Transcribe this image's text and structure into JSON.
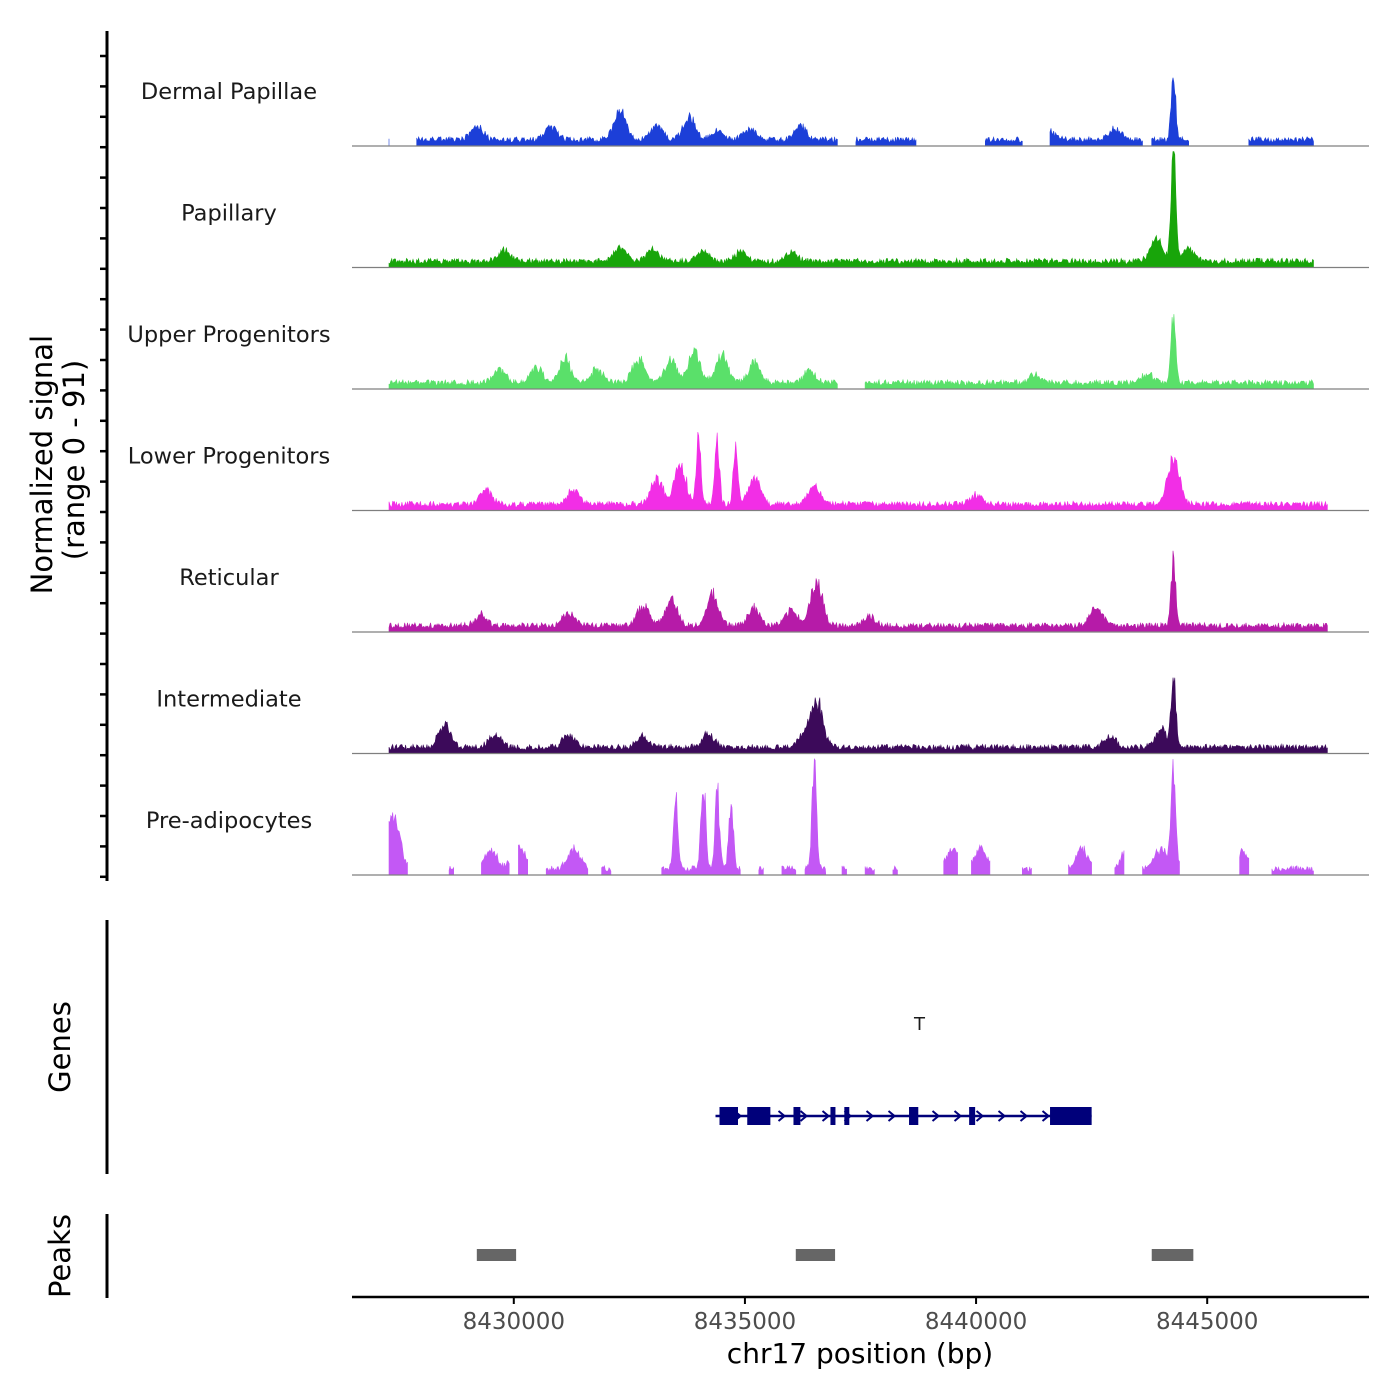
{
  "chart_data": {
    "type": "area",
    "title": "",
    "y_axis_title_line1": "Normalized signal",
    "y_axis_title_line2": "(range 0 - 91)",
    "ylim": [
      0,
      91
    ],
    "xlabel": "chr17 position (bp)",
    "xlim": [
      8426500,
      8448500
    ],
    "x_ticks": [
      8430000,
      8435000,
      8440000,
      8445000
    ],
    "x_tick_labels": [
      "8430000",
      "8435000",
      "8440000",
      "8445000"
    ],
    "tracks": [
      {
        "name": "Dermal Papillae",
        "color": "#1C3FD8",
        "segments": [
          [
            8427300,
            8427300
          ],
          [
            8427900,
            8437000
          ],
          [
            8437400,
            8438700
          ],
          [
            8440200,
            8441000
          ],
          [
            8441600,
            8443600
          ],
          [
            8443800,
            8444600
          ],
          [
            8445900,
            8447300
          ]
        ],
        "peaks": [
          [
            8429200,
            12
          ],
          [
            8430800,
            12
          ],
          [
            8432300,
            26
          ],
          [
            8433100,
            14
          ],
          [
            8433800,
            20
          ],
          [
            8434400,
            8
          ],
          [
            8435100,
            10
          ],
          [
            8436200,
            12
          ],
          [
            8441600,
            8
          ],
          [
            8443000,
            10
          ],
          [
            8444270,
            58
          ]
        ]
      },
      {
        "name": "Papillary",
        "color": "#18A50A",
        "segments": [
          [
            8427300,
            8447300
          ]
        ],
        "peaks": [
          [
            8429800,
            10
          ],
          [
            8432300,
            12
          ],
          [
            8433000,
            10
          ],
          [
            8434100,
            9
          ],
          [
            8434900,
            8
          ],
          [
            8436000,
            8
          ],
          [
            8443900,
            22
          ],
          [
            8444270,
            100
          ],
          [
            8444600,
            10
          ]
        ]
      },
      {
        "name": "Upper Progenitors",
        "color": "#5AE06A",
        "segments": [
          [
            8427300,
            8437000
          ],
          [
            8437600,
            8447300
          ]
        ],
        "peaks": [
          [
            8429700,
            12
          ],
          [
            8430500,
            14
          ],
          [
            8431100,
            22
          ],
          [
            8431800,
            12
          ],
          [
            8432700,
            22
          ],
          [
            8433400,
            20
          ],
          [
            8433900,
            28
          ],
          [
            8434500,
            26
          ],
          [
            8435200,
            18
          ],
          [
            8436400,
            10
          ],
          [
            8441300,
            8
          ],
          [
            8443700,
            8
          ],
          [
            8444270,
            60
          ]
        ]
      },
      {
        "name": "Lower Progenitors",
        "color": "#F22EE6",
        "segments": [
          [
            8427300,
            8447600
          ]
        ],
        "peaks": [
          [
            8429400,
            14
          ],
          [
            8431300,
            14
          ],
          [
            8433100,
            22
          ],
          [
            8433600,
            35
          ],
          [
            8434000,
            58
          ],
          [
            8434400,
            55
          ],
          [
            8434800,
            54
          ],
          [
            8435200,
            24
          ],
          [
            8436500,
            16
          ],
          [
            8440000,
            8
          ],
          [
            8444270,
            40
          ]
        ]
      },
      {
        "name": "Reticular",
        "color": "#B61BA8",
        "segments": [
          [
            8427300,
            8447600
          ]
        ],
        "peaks": [
          [
            8429300,
            10
          ],
          [
            8431200,
            12
          ],
          [
            8432800,
            18
          ],
          [
            8433400,
            24
          ],
          [
            8434300,
            28
          ],
          [
            8435200,
            16
          ],
          [
            8436000,
            14
          ],
          [
            8436550,
            40
          ],
          [
            8437700,
            8
          ],
          [
            8442600,
            16
          ],
          [
            8444270,
            58
          ]
        ]
      },
      {
        "name": "Intermediate",
        "color": "#3C0A5A",
        "segments": [
          [
            8427300,
            8447600
          ]
        ],
        "peaks": [
          [
            8428500,
            20
          ],
          [
            8429600,
            12
          ],
          [
            8431200,
            12
          ],
          [
            8432800,
            10
          ],
          [
            8434200,
            12
          ],
          [
            8436300,
            12
          ],
          [
            8436560,
            40
          ],
          [
            8442900,
            10
          ],
          [
            8444000,
            16
          ],
          [
            8444270,
            66
          ]
        ]
      },
      {
        "name": "Pre-adipocytes",
        "color": "#C358F5",
        "segments": [
          [
            8427300,
            8427700
          ],
          [
            8428600,
            8428700
          ],
          [
            8429300,
            8429900
          ],
          [
            8430100,
            8430300
          ],
          [
            8430700,
            8431600
          ],
          [
            8431900,
            8432100
          ],
          [
            8433200,
            8434900
          ],
          [
            8435300,
            8435400
          ],
          [
            8435800,
            8436100
          ],
          [
            8436300,
            8436750
          ],
          [
            8437100,
            8437200
          ],
          [
            8437600,
            8437800
          ],
          [
            8438200,
            8438300
          ],
          [
            8439300,
            8439600
          ],
          [
            8439900,
            8440300
          ],
          [
            8441000,
            8441200
          ],
          [
            8442000,
            8442500
          ],
          [
            8443000,
            8443200
          ],
          [
            8443600,
            8444400
          ],
          [
            8445700,
            8445900
          ],
          [
            8446400,
            8447300
          ]
        ],
        "peaks": [
          [
            8427400,
            50
          ],
          [
            8428000,
            10
          ],
          [
            8429500,
            18
          ],
          [
            8430100,
            24
          ],
          [
            8431300,
            18
          ],
          [
            8433500,
            65
          ],
          [
            8434100,
            82
          ],
          [
            8434400,
            70
          ],
          [
            8434700,
            60
          ],
          [
            8436500,
            95
          ],
          [
            8439500,
            18
          ],
          [
            8440100,
            18
          ],
          [
            8442300,
            18
          ],
          [
            8443300,
            20
          ],
          [
            8444000,
            18
          ],
          [
            8444270,
            100
          ],
          [
            8445800,
            16
          ]
        ]
      }
    ],
    "genes_track_label": "Genes",
    "gene": {
      "name": "T",
      "strand": "+",
      "start": 8434450,
      "end": 8442500,
      "color": "#00007A",
      "exons": [
        [
          8434450,
          8434850
        ],
        [
          8435050,
          8435550
        ],
        [
          8436050,
          8436200
        ],
        [
          8436850,
          8436950
        ],
        [
          8437150,
          8437250
        ],
        [
          8438550,
          8438750
        ],
        [
          8439850,
          8439980
        ],
        [
          8441600,
          8442500
        ]
      ]
    },
    "peaks_track_label": "Peaks",
    "peak_regions": [
      [
        8429200,
        8430050
      ],
      [
        8436100,
        8436950
      ],
      [
        8443800,
        8444700
      ]
    ],
    "peak_color": "#666666"
  }
}
